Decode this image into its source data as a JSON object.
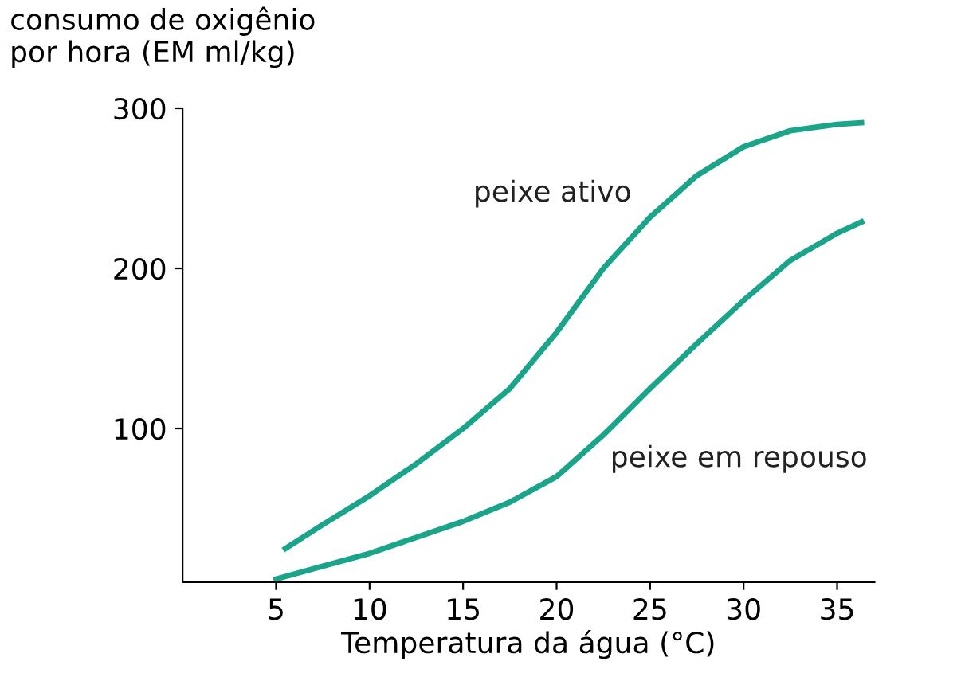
{
  "chart_data": {
    "type": "line",
    "xlabel": "Temperatura da água (°C)",
    "ylabel": "consumo de oxigênio\npor hora (EM ml/kg)",
    "xlim": [
      0,
      37
    ],
    "ylim": [
      4,
      300
    ],
    "xticks": [
      5,
      10,
      15,
      20,
      25,
      30,
      35
    ],
    "yticks": [
      100,
      200,
      300
    ],
    "grid": false,
    "legend": false,
    "marker": "none",
    "line_style": "solid",
    "series": [
      {
        "name": "peixe ativo",
        "color": "#1aa58a",
        "x": [
          5.5,
          7.5,
          10,
          12.5,
          15,
          17.5,
          20,
          22.5,
          25,
          27.5,
          30,
          32.5,
          35,
          36.3
        ],
        "values": [
          25,
          40,
          58,
          78,
          100,
          125,
          160,
          200,
          232,
          258,
          276,
          286,
          290,
          291
        ]
      },
      {
        "name": "peixe em repouso",
        "color": "#1aa58a",
        "x": [
          5,
          7.5,
          10,
          12.5,
          15,
          17.5,
          20,
          22.5,
          25,
          27.5,
          30,
          32.5,
          35,
          36.3
        ],
        "values": [
          6,
          14,
          22,
          32,
          42,
          54,
          70,
          96,
          125,
          153,
          180,
          205,
          222,
          229
        ]
      }
    ]
  }
}
